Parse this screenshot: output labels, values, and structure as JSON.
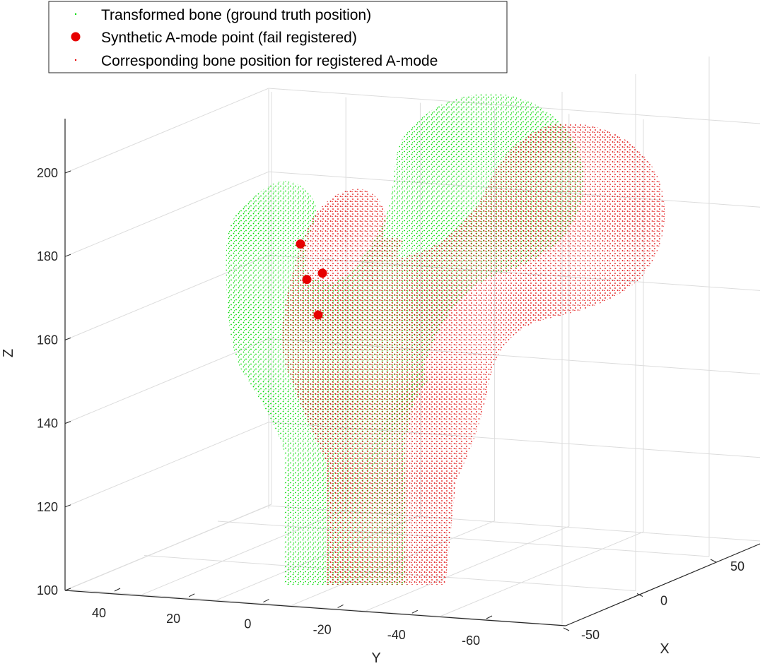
{
  "chart_data": {
    "type": "scatter3d",
    "xlabel": "X",
    "ylabel": "Y",
    "zlabel": "Z",
    "x_ticks": [
      -50,
      0,
      50
    ],
    "y_ticks": [
      40,
      20,
      0,
      -20,
      -40,
      -60
    ],
    "z_ticks": [
      100,
      120,
      140,
      160,
      180,
      200
    ],
    "xlim": [
      -60,
      60
    ],
    "ylim": [
      -70,
      50
    ],
    "zlim": [
      100,
      212
    ],
    "grid": true,
    "legend_position": "top-left",
    "series": [
      {
        "name": "Transformed bone (ground truth position)",
        "color": "#00e000",
        "marker": "dot"
      },
      {
        "name": "Synthetic A-mode point (fail registered)",
        "color": "#e60000",
        "marker": "filled-circle",
        "points_screen_order": [
          {
            "label": "p1",
            "z": 183
          },
          {
            "label": "p2",
            "z": 176
          },
          {
            "label": "p3",
            "z": 174.5
          },
          {
            "label": "p4",
            "z": 166
          }
        ]
      },
      {
        "name": "Corresponding bone position for registered A-mode",
        "color": "#e60000",
        "marker": "dot"
      }
    ]
  }
}
